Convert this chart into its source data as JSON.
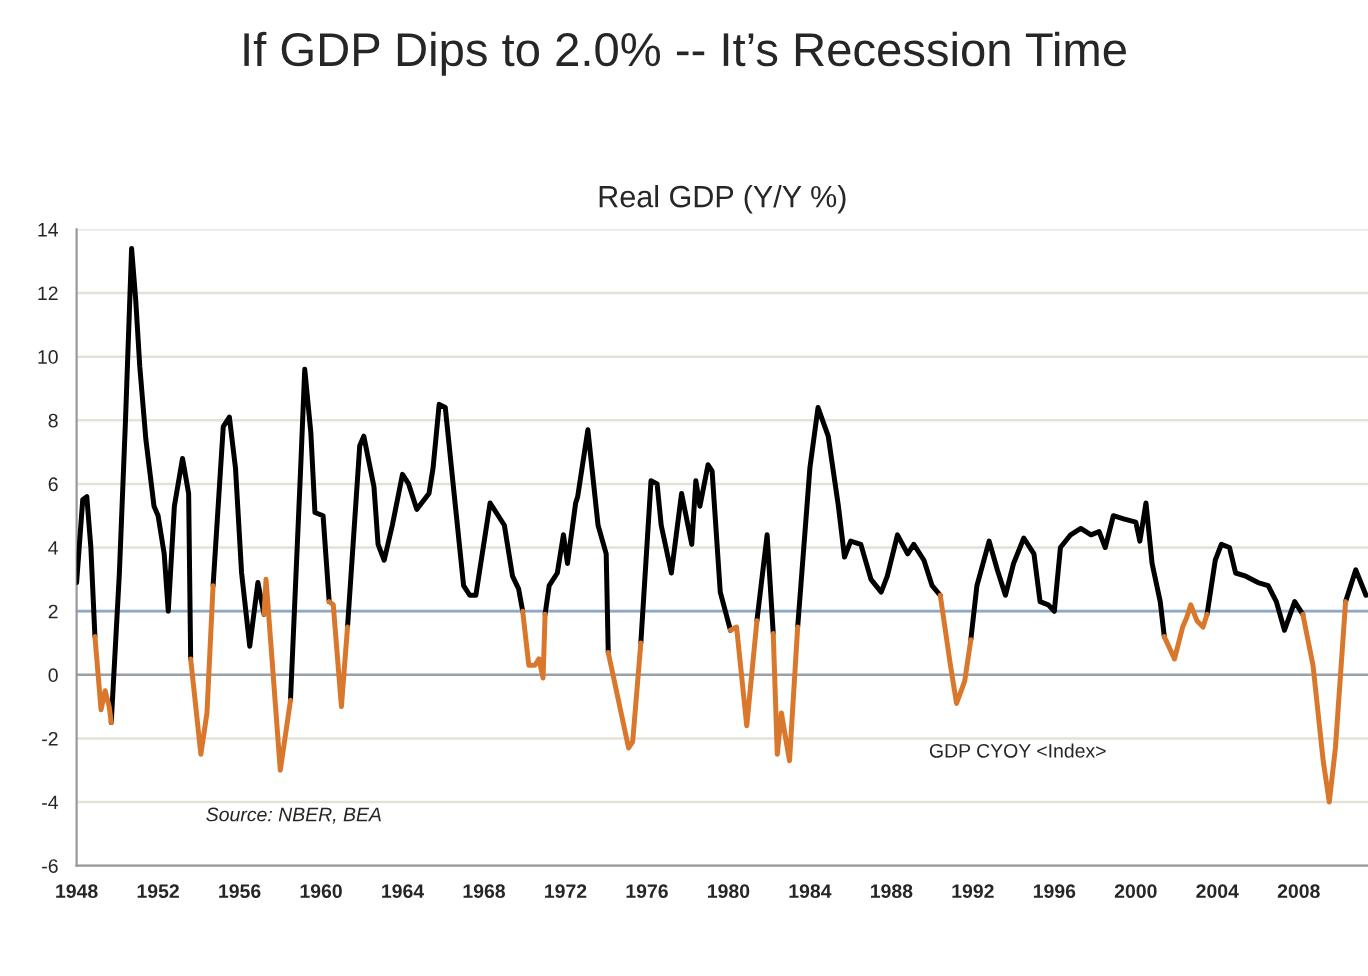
{
  "chart_data": {
    "type": "line",
    "title": "If GDP Dips to 2.0% -- It’s Recession Time",
    "subtitle": "Real GDP (Y/Y %)",
    "annotations": [
      "Source: NBER, BEA",
      "GDP CYOY <Index>"
    ],
    "x": [
      1948.0,
      1948.3,
      1948.5,
      1948.7,
      1948.9,
      1949.2,
      1949.4,
      1949.6,
      1949.7,
      1950.1,
      1950.4,
      1950.7,
      1950.9,
      1951.1,
      1951.4,
      1951.8,
      1952.0,
      1952.3,
      1952.5,
      1952.8,
      1953.2,
      1953.5,
      1953.6,
      1954.1,
      1954.4,
      1954.7,
      1955.2,
      1955.5,
      1955.8,
      1956.1,
      1956.5,
      1956.9,
      1957.2,
      1957.3,
      1958.0,
      1958.5,
      1959.0,
      1959.2,
      1959.5,
      1959.7,
      1960.1,
      1960.4,
      1960.6,
      1961.0,
      1961.3,
      1961.9,
      1962.1,
      1962.6,
      1962.8,
      1963.1,
      1963.5,
      1964.0,
      1964.3,
      1964.7,
      1965.3,
      1965.5,
      1965.8,
      1966.1,
      1966.5,
      1967.0,
      1967.3,
      1967.6,
      1968.3,
      1969.0,
      1969.4,
      1969.7,
      1969.9,
      1970.2,
      1970.5,
      1970.7,
      1970.9,
      1971.0,
      1971.2,
      1971.6,
      1971.9,
      1972.1,
      1972.5,
      1972.6,
      1973.1,
      1973.6,
      1974.0,
      1974.1,
      1974.6,
      1975.1,
      1975.3,
      1975.7,
      1976.2,
      1976.5,
      1976.7,
      1977.2,
      1977.7,
      1978.2,
      1978.4,
      1978.6,
      1979.0,
      1979.2,
      1979.6,
      1980.1,
      1980.4,
      1980.9,
      1981.4,
      1981.9,
      1982.2,
      1982.4,
      1982.6,
      1983.0,
      1983.4,
      1984.0,
      1984.4,
      1984.9,
      1985.4,
      1985.7,
      1986.0,
      1986.5,
      1987.0,
      1987.5,
      1987.8,
      1988.3,
      1988.8,
      1989.1,
      1989.6,
      1990.0,
      1990.4,
      1990.9,
      1991.2,
      1991.6,
      1991.9,
      1992.2,
      1992.8,
      1993.2,
      1993.6,
      1994.0,
      1994.5,
      1995.0,
      1995.3,
      1995.7,
      1996.0,
      1996.3,
      1996.8,
      1997.3,
      1997.8,
      1998.2,
      1998.5,
      1998.9,
      1999.4,
      2000.0,
      2000.2,
      2000.5,
      2000.8,
      2001.2,
      2001.4,
      2001.9,
      2002.3,
      2002.5,
      2002.7,
      2003.0,
      2003.3,
      2003.5,
      2003.9,
      2004.2,
      2004.6,
      2004.9,
      2005.4,
      2006.0,
      2006.5,
      2006.9,
      2007.3,
      2007.8,
      2008.2,
      2008.7,
      2009.2,
      2009.5,
      2009.8,
      2010.3,
      2010.8,
      2011.3
    ],
    "series": [
      {
        "color": "#000000",
        "values": [
          2.9,
          5.5,
          5.6,
          4.0,
          1.2,
          null,
          null,
          null,
          -1.5,
          3.2,
          8.0,
          13.4,
          11.8,
          9.7,
          7.4,
          5.3,
          5.0,
          3.8,
          2.0,
          5.3,
          6.8,
          5.7,
          0.5,
          null,
          null,
          2.8,
          7.8,
          8.1,
          6.5,
          3.2,
          0.9,
          2.9,
          1.9,
          null,
          null,
          -0.8,
          6.5,
          9.6,
          7.6,
          5.1,
          5.0,
          2.3,
          null,
          null,
          1.5,
          7.2,
          7.5,
          5.9,
          4.1,
          3.6,
          4.7,
          6.3,
          6.0,
          5.2,
          5.7,
          6.5,
          8.5,
          8.4,
          5.9,
          2.8,
          2.5,
          2.5,
          5.4,
          4.7,
          3.1,
          2.7,
          2.0,
          null,
          null,
          null,
          null,
          1.9,
          2.8,
          3.2,
          4.4,
          3.5,
          5.4,
          5.6,
          7.7,
          4.7,
          3.8,
          0.7,
          null,
          null,
          null,
          1.0,
          6.1,
          6.0,
          4.7,
          3.2,
          5.7,
          4.1,
          6.1,
          5.3,
          6.6,
          6.4,
          2.6,
          1.4,
          null,
          null,
          1.7,
          4.4,
          1.3,
          null,
          null,
          null,
          1.5,
          6.5,
          8.4,
          7.5,
          5.3,
          3.7,
          4.2,
          4.1,
          3.0,
          2.6,
          3.1,
          4.4,
          3.8,
          4.1,
          3.6,
          2.8,
          2.5,
          null,
          null,
          null,
          1.1,
          2.8,
          4.2,
          3.3,
          2.5,
          3.5,
          4.3,
          3.8,
          2.3,
          2.2,
          2.0,
          4.0,
          4.4,
          4.6,
          4.4,
          4.5,
          4.0,
          5.0,
          4.9,
          4.8,
          4.2,
          5.4,
          3.5,
          2.3,
          1.2,
          null,
          null,
          null,
          null,
          null,
          null,
          1.9,
          3.6,
          4.1,
          4.0,
          3.2,
          3.1,
          2.9,
          2.8,
          2.3,
          1.4,
          2.3,
          1.9,
          null,
          null,
          null,
          null,
          2.3,
          3.3,
          2.5
        ]
      },
      {
        "color": "#d9782d",
        "values": [
          null,
          null,
          null,
          null,
          1.2,
          -1.1,
          -0.5,
          -1.0,
          -1.5,
          null,
          null,
          null,
          null,
          null,
          null,
          null,
          null,
          null,
          null,
          null,
          null,
          null,
          0.5,
          -2.5,
          -1.2,
          2.8,
          null,
          null,
          null,
          null,
          null,
          null,
          1.9,
          3.0,
          -3.0,
          -0.8,
          null,
          null,
          null,
          null,
          null,
          2.3,
          2.2,
          -1.0,
          1.5,
          null,
          null,
          null,
          null,
          null,
          null,
          null,
          null,
          null,
          null,
          null,
          null,
          null,
          null,
          null,
          null,
          null,
          null,
          null,
          null,
          null,
          2.0,
          0.3,
          0.3,
          0.5,
          -0.1,
          1.9,
          null,
          null,
          null,
          null,
          null,
          null,
          null,
          null,
          null,
          0.7,
          -0.8,
          -2.3,
          -2.1,
          1.0,
          null,
          null,
          null,
          null,
          null,
          null,
          null,
          null,
          null,
          null,
          null,
          1.4,
          1.5,
          -1.6,
          1.7,
          null,
          1.3,
          -2.5,
          -1.2,
          -2.7,
          1.5,
          null,
          null,
          null,
          null,
          null,
          null,
          null,
          null,
          null,
          null,
          null,
          null,
          null,
          null,
          null,
          2.5,
          0.3,
          -0.9,
          -0.2,
          1.1,
          null,
          null,
          null,
          null,
          null,
          null,
          null,
          null,
          null,
          null,
          null,
          null,
          null,
          null,
          null,
          null,
          null,
          null,
          null,
          null,
          null,
          null,
          null,
          1.2,
          0.5,
          1.5,
          1.8,
          2.2,
          1.7,
          1.5,
          1.9,
          null,
          null,
          null,
          null,
          null,
          null,
          null,
          null,
          null,
          null,
          1.9,
          0.3,
          -2.7,
          -4.0,
          -2.3,
          2.3,
          null,
          null
        ]
      }
    ],
    "xlim": [
      1948,
      2011.4
    ],
    "xticks": [
      1948,
      1952,
      1956,
      1960,
      1964,
      1968,
      1972,
      1976,
      1980,
      1984,
      1988,
      1992,
      1996,
      2000,
      2004,
      2008
    ],
    "ylim": [
      -6,
      14
    ],
    "yticks": [
      -6,
      -4,
      -2,
      0,
      2,
      4,
      6,
      8,
      10,
      12,
      14
    ],
    "ref_lines": [
      {
        "axis": "y",
        "value": 2,
        "color": "#8ea8c8"
      }
    ],
    "grid": "y",
    "marker": "none",
    "line_style": "solid"
  }
}
